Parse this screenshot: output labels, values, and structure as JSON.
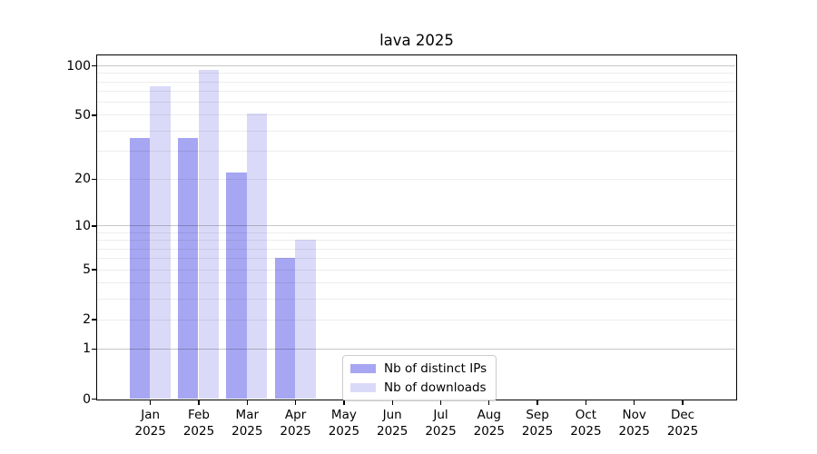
{
  "figure": {
    "title": "lava 2025"
  },
  "legend": {
    "items": [
      {
        "label": "Nb of distinct IPs",
        "series": "ips"
      },
      {
        "label": "Nb of downloads",
        "series": "downloads"
      }
    ]
  },
  "colors": {
    "ips": "#a6a6f2",
    "downloads": "#dadaf8",
    "grid_major": "rgba(0,0,0,0.22)",
    "grid_minor": "rgba(0,0,0,0.07)",
    "frame": "#000000",
    "legend_border": "#cccccc",
    "text": "#000000"
  },
  "chart_data": {
    "type": "bar",
    "title": "lava 2025",
    "xlabel": "",
    "ylabel": "",
    "y_scale": "log1p",
    "year_line": "2025",
    "categories": [
      "Jan",
      "Feb",
      "Mar",
      "Apr",
      "May",
      "Jun",
      "Jul",
      "Aug",
      "Sep",
      "Oct",
      "Nov",
      "Dec"
    ],
    "series": [
      {
        "name": "Nb of distinct IPs",
        "key": "ips",
        "values": [
          36,
          36,
          22,
          6,
          null,
          null,
          null,
          null,
          null,
          null,
          null,
          null
        ]
      },
      {
        "name": "Nb of downloads",
        "key": "downloads",
        "values": [
          75,
          94,
          51,
          8,
          null,
          null,
          null,
          null,
          null,
          null,
          null,
          null
        ]
      }
    ],
    "y_ticks": [
      0,
      1,
      2,
      5,
      10,
      20,
      50,
      100
    ],
    "grid_major_values": [
      1,
      10,
      100
    ],
    "grid_minor_values": [
      2,
      3,
      4,
      5,
      6,
      7,
      8,
      9,
      20,
      30,
      40,
      50,
      60,
      70,
      80,
      90
    ],
    "ylim": [
      0,
      115
    ],
    "grid": "horizontal only",
    "legend_position": "inside lower center"
  }
}
